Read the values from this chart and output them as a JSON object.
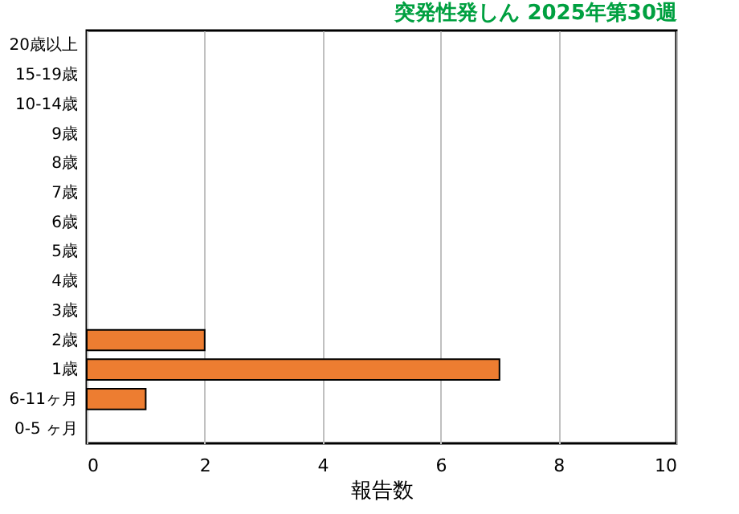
{
  "chart_data": {
    "type": "bar",
    "orientation": "horizontal",
    "title": "突発性発しん 2025年第30週",
    "xlabel": "報告数",
    "categories": [
      "20歳以上",
      "15-19歳",
      "10-14歳",
      "9歳",
      "8歳",
      "7歳",
      "6歳",
      "5歳",
      "4歳",
      "3歳",
      "2歳",
      "1歳",
      "6-11ヶ月",
      "0-5 ヶ月"
    ],
    "values": [
      0,
      0,
      0,
      0,
      0,
      0,
      0,
      0,
      0,
      0,
      2,
      7,
      1,
      0
    ],
    "color": "#ed7d31",
    "xlim": [
      0,
      10
    ],
    "xticks": [
      0,
      2,
      4,
      6,
      8,
      10
    ],
    "grid": "x"
  }
}
